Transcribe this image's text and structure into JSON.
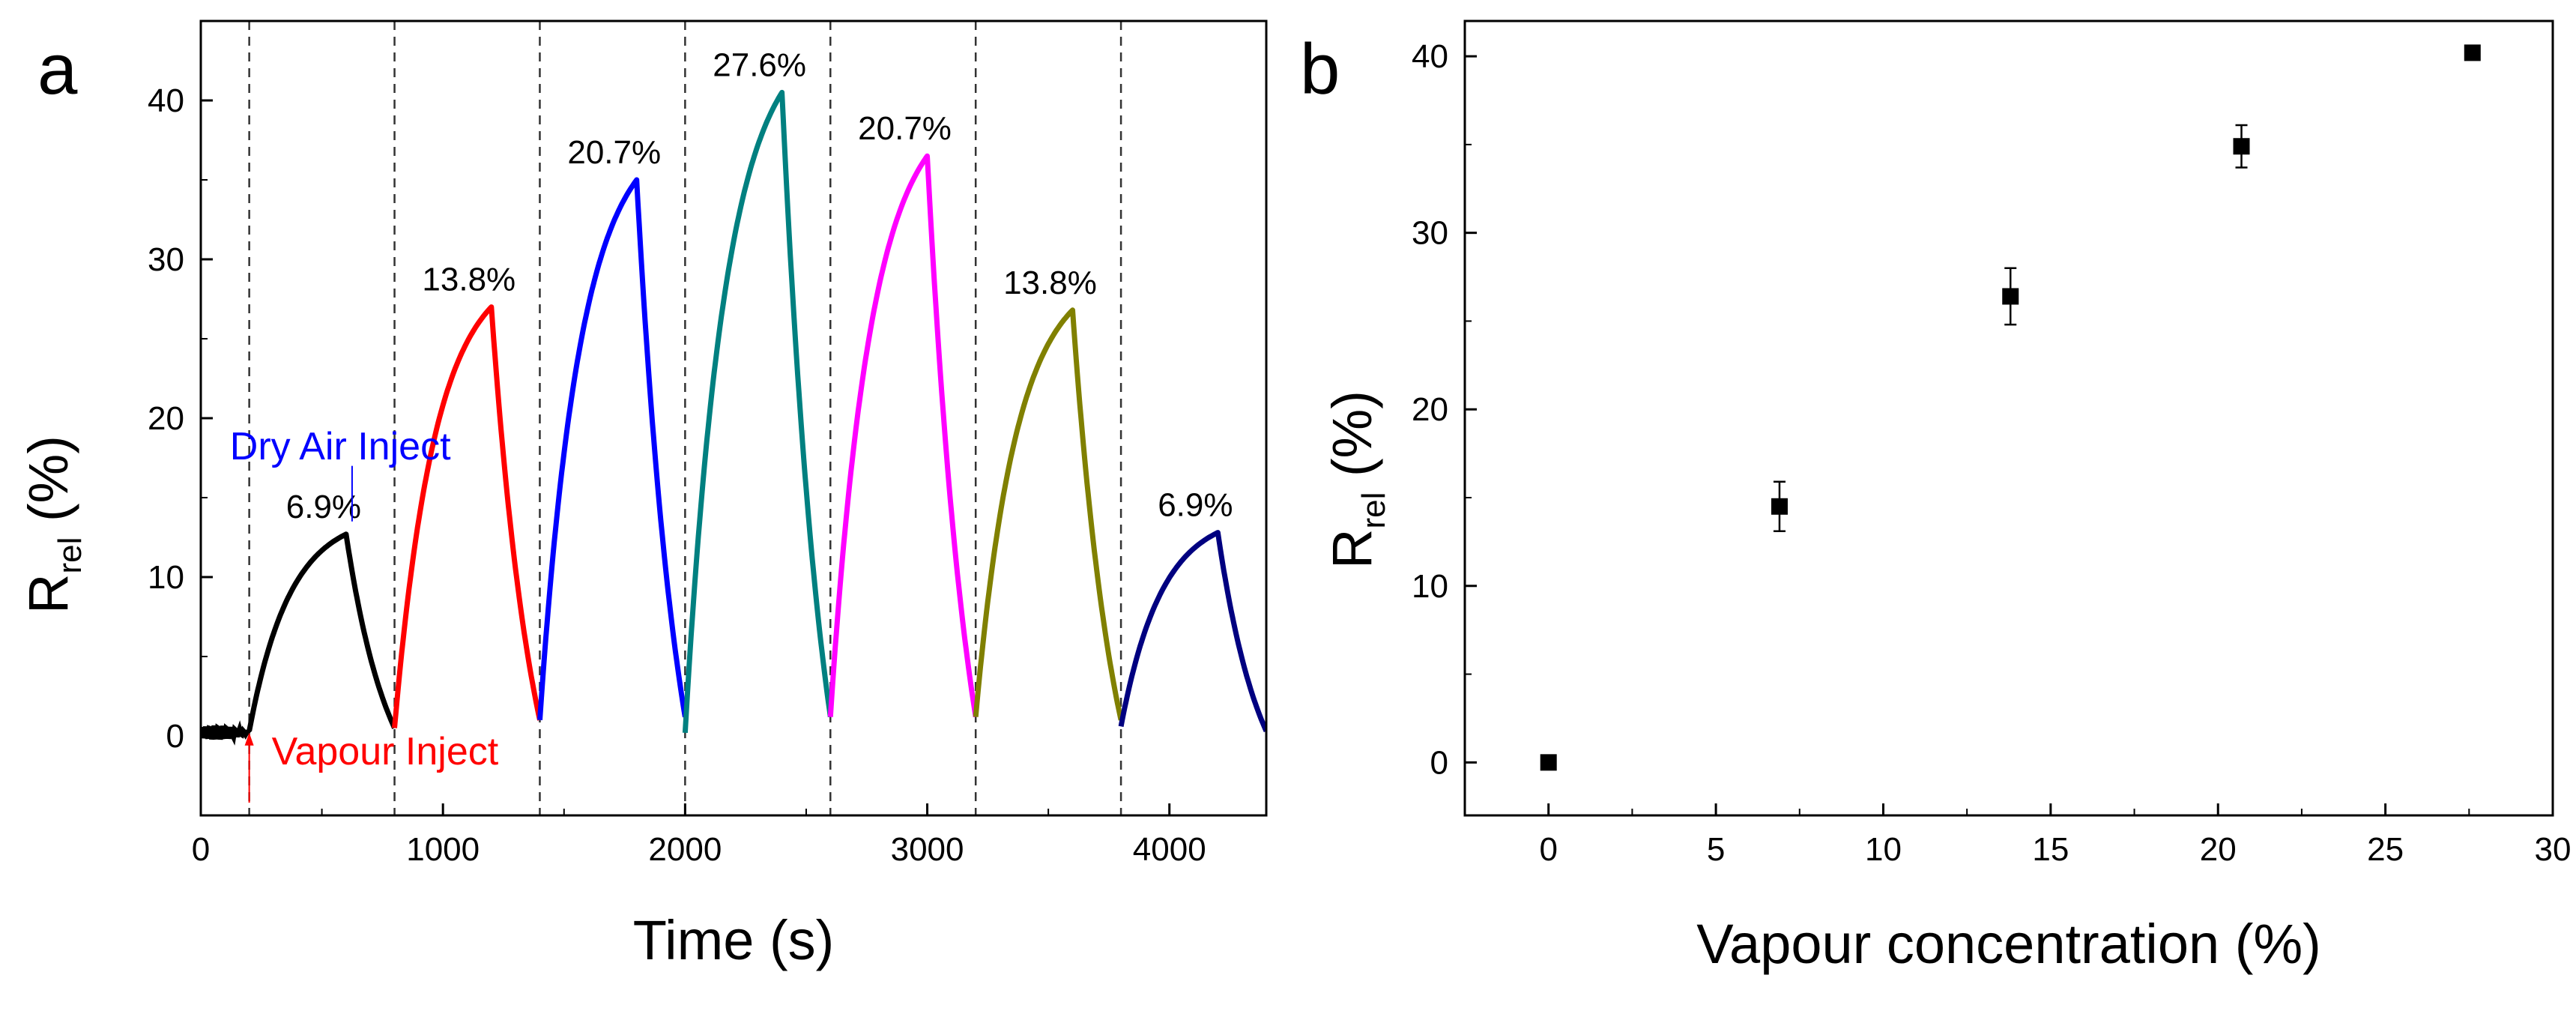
{
  "chart_data": [
    {
      "panel": "a",
      "type": "line",
      "xlabel": "Time (s)",
      "ylabel_main": "R",
      "ylabel_sub": "rel",
      "ylabel_unit": " (%)",
      "xlim": [
        0,
        4400
      ],
      "ylim": [
        -5,
        45
      ],
      "xticks": [
        0,
        1000,
        2000,
        3000,
        4000
      ],
      "yticks": [
        0,
        10,
        20,
        30,
        40
      ],
      "vlines": [
        200,
        800,
        1400,
        2000,
        2600,
        3200,
        3800
      ],
      "segments": [
        {
          "name": "6.9% cycle 1",
          "label": "6.9%",
          "color": "#000000",
          "t_start": 200,
          "t_peak": 600,
          "t_end": 800,
          "base_start": 0.3,
          "peak": 12.7,
          "end": 0.5
        },
        {
          "name": "13.8% cycle 1",
          "label": "13.8%",
          "color": "#ff0000",
          "t_start": 800,
          "t_peak": 1200,
          "t_end": 1400,
          "base_start": 0.5,
          "peak": 27.0,
          "end": 1.0
        },
        {
          "name": "20.7% cycle 1",
          "label": "20.7%",
          "color": "#0000ff",
          "t_start": 1400,
          "t_peak": 1800,
          "t_end": 2000,
          "base_start": 1.0,
          "peak": 35.0,
          "end": 1.2
        },
        {
          "name": "27.6% cycle",
          "label": "27.6%",
          "color": "#008080",
          "t_start": 2000,
          "t_peak": 2400,
          "t_end": 2600,
          "base_start": 0.2,
          "peak": 40.5,
          "end": 1.2
        },
        {
          "name": "20.7% cycle 2",
          "label": "20.7%",
          "color": "#ff00ff",
          "t_start": 2600,
          "t_peak": 3000,
          "t_end": 3200,
          "base_start": 1.2,
          "peak": 36.5,
          "end": 1.2
        },
        {
          "name": "13.8% cycle 2",
          "label": "13.8%",
          "color": "#808000",
          "t_start": 3200,
          "t_peak": 3600,
          "t_end": 3800,
          "base_start": 1.2,
          "peak": 26.8,
          "end": 1.0
        },
        {
          "name": "6.9% cycle 2",
          "label": "6.9%",
          "color": "#000080",
          "t_start": 3800,
          "t_peak": 4200,
          "t_end": 4400,
          "base_start": 0.6,
          "peak": 12.8,
          "end": 0.3
        }
      ],
      "baseline": {
        "t_start": 0,
        "t_end": 200,
        "value": 0.2,
        "color": "#000000"
      },
      "annotations": {
        "vapour_inject": {
          "text": "Vapour Inject",
          "color": "#ff0000",
          "t": 200
        },
        "dry_air_inject": {
          "text": "Dry Air Inject",
          "color": "#0000ff",
          "t": 600
        }
      }
    },
    {
      "panel": "b",
      "type": "scatter",
      "xlabel": "Vapour concentration (%)",
      "ylabel_main": "R",
      "ylabel_sub": "rel",
      "ylabel_unit": " (%)",
      "xlim": [
        -2.5,
        30
      ],
      "ylim": [
        -3,
        42
      ],
      "xticks": [
        0,
        5,
        10,
        15,
        20,
        25,
        30
      ],
      "yticks": [
        0,
        10,
        20,
        30,
        40
      ],
      "x": [
        0,
        6.9,
        13.8,
        20.7,
        27.6
      ],
      "y": [
        0,
        14.5,
        26.4,
        34.9,
        40.2
      ],
      "yerr": [
        0,
        1.4,
        1.6,
        1.2,
        0
      ]
    }
  ]
}
